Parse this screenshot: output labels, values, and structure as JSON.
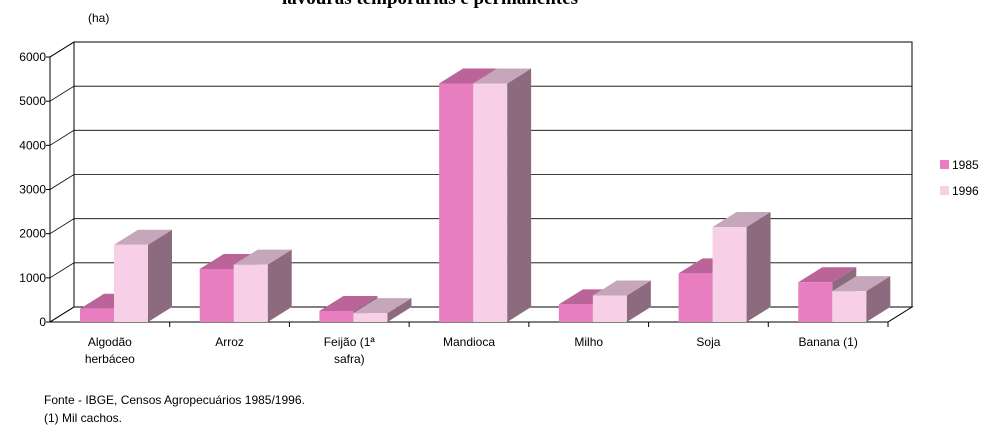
{
  "chart_data": {
    "type": "bar3d",
    "title": "lavouras temporárias e permanentes",
    "y_unit": "(ha)",
    "categories": [
      "Algodão herbáceo",
      "Arroz",
      "Feijão (1ª safra)",
      "Mandioca",
      "Milho",
      "Soja",
      "Banana (1)"
    ],
    "series": [
      {
        "name": "1985",
        "color": "#e87dbf",
        "values": [
          300,
          1200,
          250,
          5400,
          400,
          1100,
          900
        ]
      },
      {
        "name": "1996",
        "color": "#f7d0e8",
        "values": [
          1750,
          1300,
          200,
          5400,
          600,
          2150,
          700
        ]
      }
    ],
    "ylim": [
      0,
      6000
    ],
    "yticks": [
      0,
      1000,
      2000,
      3000,
      4000,
      5000,
      6000
    ],
    "grid": true,
    "legend": "right",
    "notes": [
      "Fonte - IBGE, Censos Agropecuários 1985/1996.",
      "(1) Mil cachos."
    ]
  }
}
